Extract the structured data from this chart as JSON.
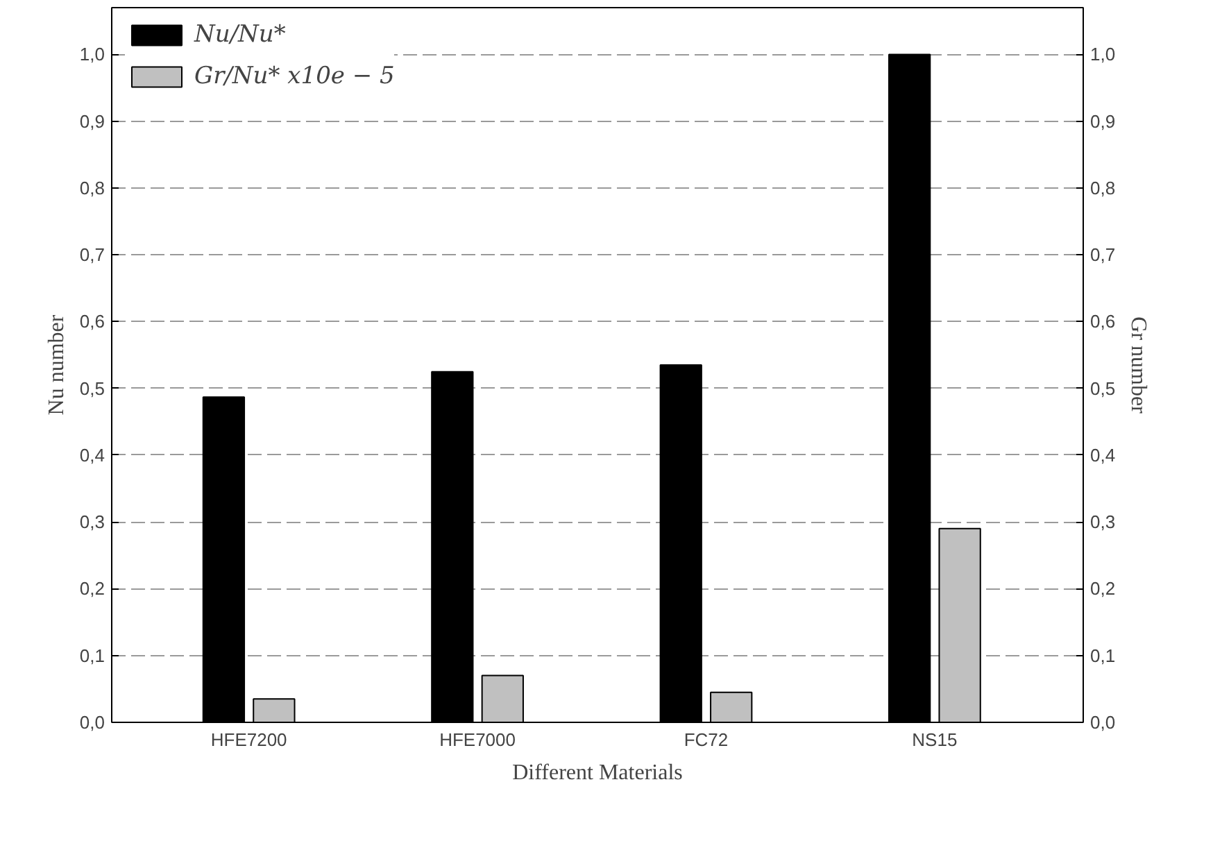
{
  "chart_data": {
    "type": "bar",
    "xlabel": "Different Materials",
    "ylabel": "Nu number",
    "y2label": "Gr number",
    "categories": [
      "HFE7200",
      "HFE7000",
      "FC72",
      "NS15"
    ],
    "series": [
      {
        "name": "Nu/Nu*",
        "color": "#000000",
        "values": [
          0.487,
          0.525,
          0.535,
          1.0
        ]
      },
      {
        "name": "Gr/Nu* x10e − 5",
        "color": "#c0c0c0",
        "values": [
          0.035,
          0.07,
          0.045,
          0.29
        ]
      }
    ],
    "ylim": [
      0,
      1.07
    ],
    "yticks": [
      {
        "value": 0,
        "label": "0,0"
      },
      {
        "value": 0.1,
        "label": "0,1"
      },
      {
        "value": 0.2,
        "label": "0,2"
      },
      {
        "value": 0.3,
        "label": "0,3"
      },
      {
        "value": 0.4,
        "label": "0,4"
      },
      {
        "value": 0.5,
        "label": "0,5"
      },
      {
        "value": 0.6,
        "label": "0,6"
      },
      {
        "value": 0.7,
        "label": "0,7"
      },
      {
        "value": 0.8,
        "label": "0,8"
      },
      {
        "value": 0.9,
        "label": "0,9"
      },
      {
        "value": 1.0,
        "label": "1,0"
      }
    ],
    "y2lim": [
      0,
      1.07
    ],
    "y2ticks": [
      {
        "value": 0,
        "label": "0,0"
      },
      {
        "value": 0.1,
        "label": "0,1"
      },
      {
        "value": 0.2,
        "label": "0,2"
      },
      {
        "value": 0.3,
        "label": "0,3"
      },
      {
        "value": 0.4,
        "label": "0,4"
      },
      {
        "value": 0.5,
        "label": "0,5"
      },
      {
        "value": 0.6,
        "label": "0,6"
      },
      {
        "value": 0.7,
        "label": "0,7"
      },
      {
        "value": 0.8,
        "label": "0,8"
      },
      {
        "value": 0.9,
        "label": "0,9"
      },
      {
        "value": 1.0,
        "label": "1,0"
      }
    ],
    "grid": "y",
    "legend": "top left"
  }
}
